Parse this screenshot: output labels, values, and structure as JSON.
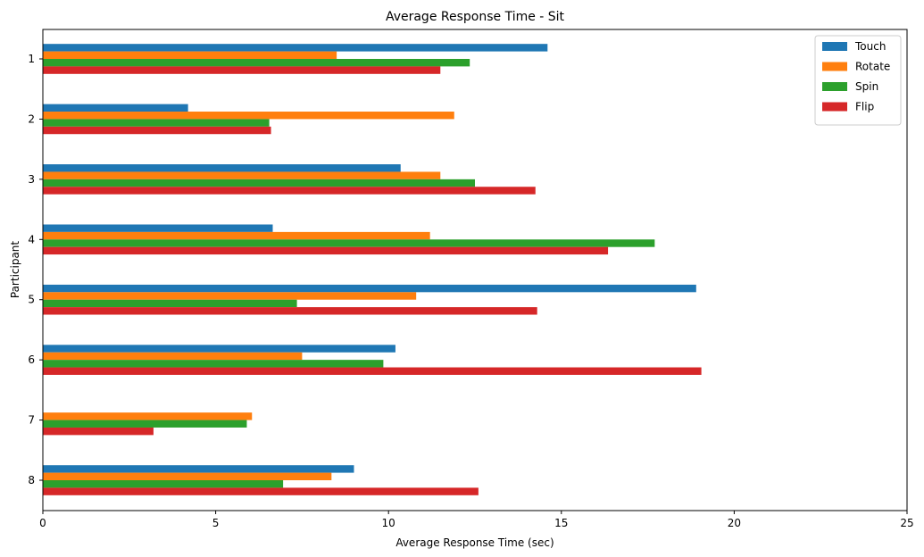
{
  "chart_data": {
    "type": "bar",
    "orientation": "horizontal",
    "title": "Average Response Time - Sit",
    "xlabel": "Average Response Time (sec)",
    "ylabel": "Participant",
    "categories": [
      "1",
      "2",
      "3",
      "4",
      "5",
      "6",
      "7",
      "8"
    ],
    "xlim": [
      0,
      25
    ],
    "xticks": [
      0,
      5,
      10,
      15,
      20,
      25
    ],
    "legend_position": "top-right",
    "grid": false,
    "series": [
      {
        "name": "Touch",
        "color": "#1f77b4",
        "values": [
          14.6,
          4.2,
          10.35,
          6.65,
          18.9,
          10.2,
          0,
          9.0
        ]
      },
      {
        "name": "Rotate",
        "color": "#ff7f0e",
        "values": [
          8.5,
          11.9,
          11.5,
          11.2,
          10.8,
          7.5,
          6.05,
          8.35
        ]
      },
      {
        "name": "Spin",
        "color": "#2ca02c",
        "values": [
          12.35,
          6.55,
          12.5,
          17.7,
          7.35,
          9.85,
          5.9,
          6.95
        ]
      },
      {
        "name": "Flip",
        "color": "#d62728",
        "values": [
          11.5,
          6.6,
          14.25,
          16.35,
          14.3,
          19.05,
          3.2,
          12.6
        ]
      }
    ]
  }
}
